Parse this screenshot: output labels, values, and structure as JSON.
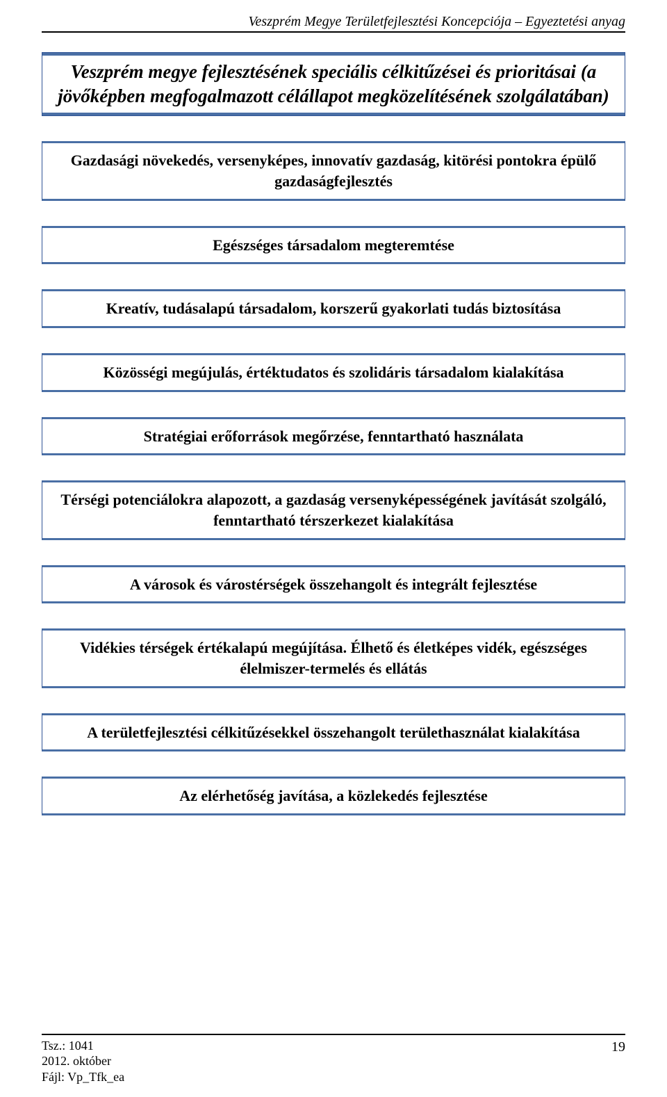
{
  "header": {
    "running_title": "Veszprém Megye Területfejlesztési Koncepciója – Egyeztetési anyag"
  },
  "title_box": {
    "text": "Veszprém megye fejlesztésének speciális célkitűzései és prioritásai (a jövőképben megfogalmazott célállapot megközelítésének szolgálatában)"
  },
  "objectives": [
    "Gazdasági növekedés, versenyképes, innovatív gazdaság, kitörési pontokra épülő gazdaságfejlesztés",
    "Egészséges társadalom megteremtése",
    "Kreatív, tudásalapú társadalom, korszerű gyakorlati tudás biztosítása",
    "Közösségi megújulás, értéktudatos és szolidáris társadalom kialakítása",
    "Stratégiai erőforrások megőrzése, fenntartható használata",
    "Térségi potenciálokra alapozott, a gazdaság versenyképességének javítását szolgáló, fenntartható térszerkezet kialakítása",
    "A városok és várostérségek összehangolt és integrált fejlesztése",
    "Vidékies térségek értékalapú megújítása. Élhető és életképes vidék, egészséges élelmiszer-termelés és ellátás",
    "A területfejlesztési célkitűzésekkel összehangolt területhasználat kialakítása",
    "Az elérhetőség javítása, a közlekedés fejlesztése"
  ],
  "footer": {
    "ref": "Tsz.: 1041",
    "date": "2012. október",
    "file": "Fájl: Vp_Tfk_ea",
    "page_number": "19"
  },
  "colors": {
    "box_border": "#2f5496",
    "box_band": "#4a6fa5",
    "text": "#000000",
    "background": "#ffffff"
  }
}
